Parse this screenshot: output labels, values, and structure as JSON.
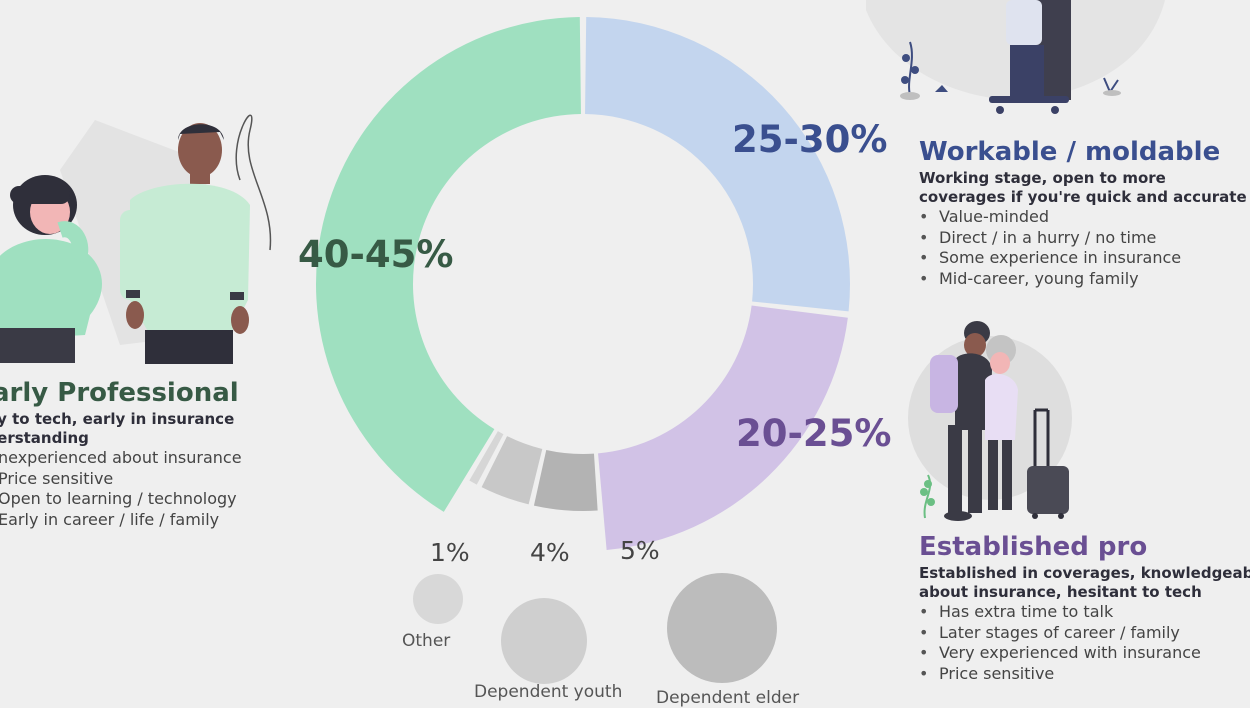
{
  "colors": {
    "workable": "#c3d5ee",
    "established": "#d1c2e6",
    "early": "#9fe0c0",
    "other": "#d6d6d6",
    "youth": "#c8c8c8",
    "elder": "#b3b3b3",
    "workable_text": "#3a4f8f",
    "established_text": "#6a4f93",
    "early_text": "#375a45"
  },
  "chart_data": {
    "type": "pie",
    "donut": true,
    "slices": [
      {
        "label": "25-30%",
        "value": 27.5
      },
      {
        "label": "20-25%",
        "value": 22.5
      },
      {
        "label": "5%",
        "value": 5
      },
      {
        "label": "4%",
        "value": 4
      },
      {
        "label": "1%",
        "value": 1
      },
      {
        "label": "40-45%",
        "value": 42.5
      }
    ],
    "small_segments": [
      {
        "label": "1%",
        "name": "Other",
        "value": 1
      },
      {
        "label": "4%",
        "name": "Dependent youth",
        "value": 4
      },
      {
        "label": "5%",
        "name": "Dependent elder",
        "value": 5
      }
    ]
  },
  "personas": {
    "workable": {
      "title": "Workable / moldable",
      "subtitle_1": "Working stage, open to more",
      "subtitle_2": "coverages if you're quick and accurate",
      "bullets": [
        "Value-minded",
        "Direct / in a hurry / no time",
        "Some experience in insurance",
        "Mid-career, young family"
      ]
    },
    "established": {
      "title": "Established pro",
      "subtitle_1": "Established in coverages, knowledgeable",
      "subtitle_2": "about insurance, hesitant to tech",
      "bullets": [
        "Has extra time to talk",
        "Later stages of career / family",
        "Very experienced with insurance",
        "Price sensitive"
      ]
    },
    "early": {
      "title": "arly Professional",
      "subtitle_1": "ly to tech, early in insurance",
      "subtitle_2": "lerstanding",
      "bullets": [
        "nexperienced about insurance",
        "Price sensitive",
        "Open to learning / technology",
        "Early in career / life / family"
      ]
    }
  }
}
